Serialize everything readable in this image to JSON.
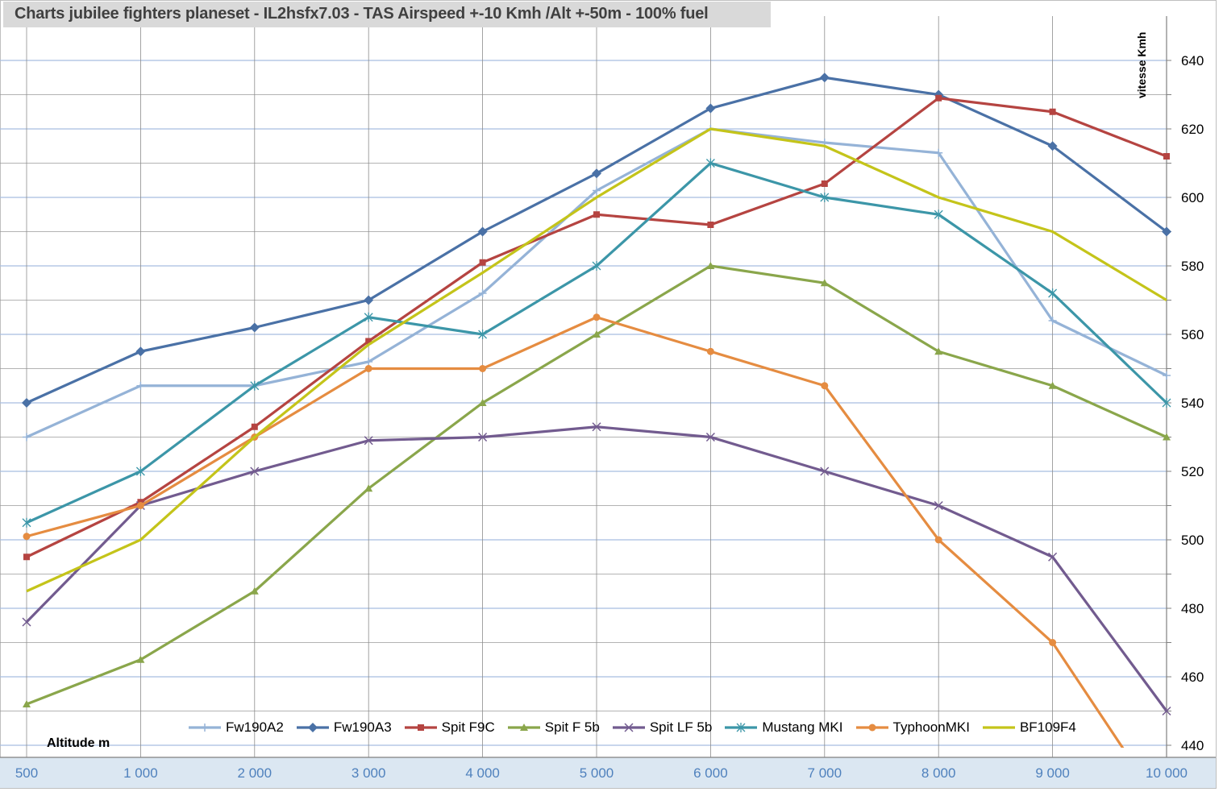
{
  "chart_data": {
    "type": "line",
    "title": "Charts jubilee fighters planeset - IL2hsfx7.03 - TAS Airspeed +-10 Kmh /Alt +-50m - 100% fuel",
    "xlabel": "Altitude m",
    "ylabel": "vitesse Kmh",
    "categories": [
      "500",
      "1 000",
      "2 000",
      "3 000",
      "4 000",
      "5 000",
      "6 000",
      "7 000",
      "8 000",
      "9 000",
      "10 000"
    ],
    "y_ticks": [
      "440",
      "460",
      "480",
      "500",
      "520",
      "540",
      "560",
      "580",
      "600",
      "620",
      "640"
    ],
    "ylim": [
      440,
      640
    ],
    "grid": true,
    "legend_position": "bottom",
    "series": [
      {
        "name": "Fw190A2",
        "color": "#95b3d7",
        "marker": "plus",
        "values": [
          530,
          545,
          545,
          552,
          572,
          602,
          620,
          616,
          613,
          564,
          548
        ]
      },
      {
        "name": "Fw190A3",
        "color": "#4a71a6",
        "marker": "diamond",
        "values": [
          540,
          555,
          562,
          570,
          590,
          607,
          626,
          635,
          630,
          615,
          590
        ]
      },
      {
        "name": "Spit F9C",
        "color": "#b54441",
        "marker": "square",
        "values": [
          495,
          511,
          533,
          558,
          581,
          595,
          592,
          604,
          629,
          625,
          612
        ]
      },
      {
        "name": "Spit F 5b",
        "color": "#8aa64b",
        "marker": "triangle",
        "values": [
          452,
          465,
          485,
          515,
          540,
          560,
          580,
          575,
          555,
          545,
          530
        ]
      },
      {
        "name": "Spit LF 5b",
        "color": "#725b8f",
        "marker": "x",
        "values": [
          476,
          510,
          520,
          529,
          530,
          533,
          530,
          520,
          510,
          495,
          450
        ]
      },
      {
        "name": "Mustang MKI",
        "color": "#3c96a8",
        "marker": "star",
        "values": [
          505,
          520,
          545,
          565,
          560,
          580,
          610,
          600,
          595,
          572,
          540
        ]
      },
      {
        "name": "TyphoonMKI",
        "color": "#e58c41",
        "marker": "circle",
        "values": [
          501,
          510,
          530,
          550,
          550,
          565,
          555,
          545,
          500,
          470,
          420
        ]
      },
      {
        "name": "BF109F4",
        "color": "#c4c41a",
        "marker": "none",
        "values": [
          485,
          500,
          530,
          557,
          578,
          600,
          620,
          615,
          600,
          590,
          570
        ]
      }
    ]
  }
}
